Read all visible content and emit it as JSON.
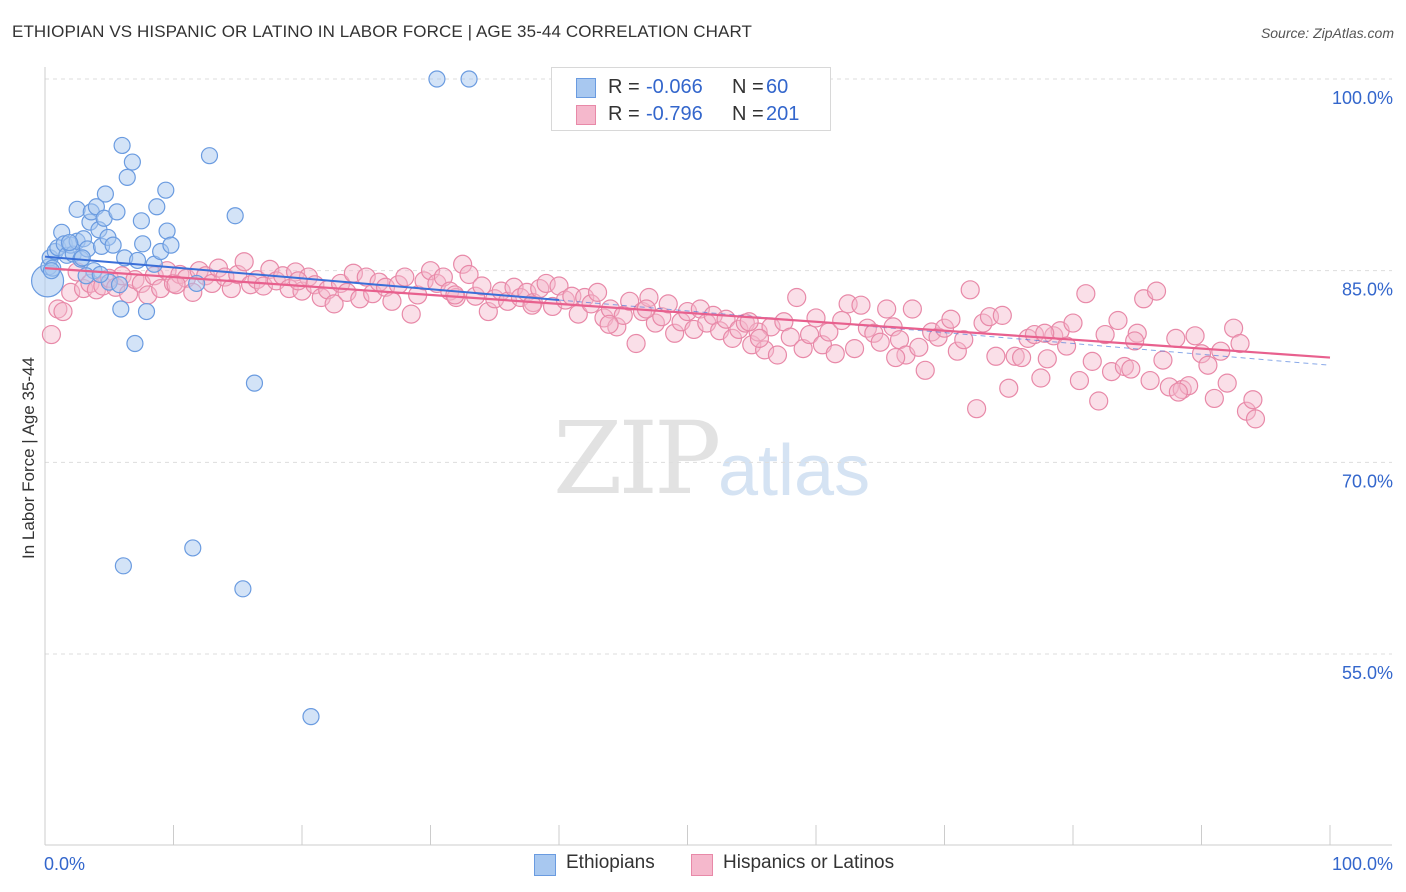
{
  "title": "ETHIOPIAN VS HISPANIC OR LATINO IN LABOR FORCE | AGE 35-44 CORRELATION CHART",
  "source": "Source: ZipAtlas.com",
  "watermark": {
    "zip": "ZIP",
    "atlas": "atlas"
  },
  "legend": {
    "r_label": "R =",
    "n_label": "N =",
    "rows": [
      {
        "r": "-0.066",
        "n": "60"
      },
      {
        "r": "-0.796",
        "n": "201"
      }
    ]
  },
  "colors": {
    "ethiopians_fill": "#a8c8f0",
    "ethiopians_stroke": "#6a9be0",
    "ethiopians_line": "#3a6fd8",
    "hispanics_fill": "#f5b8cc",
    "hispanics_stroke": "#e889a8",
    "hispanics_line": "#e8608e",
    "axis_text": "#3366cc",
    "grid": "#dddddd"
  },
  "chart_data": {
    "type": "scatter",
    "title": "ETHIOPIAN VS HISPANIC OR LATINO IN LABOR FORCE | AGE 35-44 CORRELATION CHART",
    "ylabel": "In Labor Force | Age 35-44",
    "xlabel": "",
    "x_tick_labels": [
      "0.0%",
      "100.0%"
    ],
    "y_tick_labels": [
      "100.0%",
      "85.0%",
      "70.0%",
      "55.0%"
    ],
    "y_ticks": [
      100,
      85,
      70,
      55
    ],
    "xlim": [
      0,
      100
    ],
    "ylim": [
      40,
      101.5
    ],
    "grid": true,
    "legend_position": "top-center",
    "series": [
      {
        "name": "Ethiopians",
        "r": -0.066,
        "n": 60,
        "trend": {
          "x": [
            0,
            40
          ],
          "y": [
            86.1,
            82.7
          ]
        },
        "points": [
          [
            0.2,
            84.2
          ],
          [
            0.3,
            85.3
          ],
          [
            0.4,
            86.0
          ],
          [
            0.6,
            85.2
          ],
          [
            0.8,
            86.5
          ],
          [
            1.0,
            86.8
          ],
          [
            1.3,
            88.0
          ],
          [
            1.5,
            87.1
          ],
          [
            1.7,
            86.2
          ],
          [
            2.0,
            87.0
          ],
          [
            2.2,
            86.3
          ],
          [
            2.5,
            89.8
          ],
          [
            2.5,
            87.3
          ],
          [
            2.8,
            85.9
          ],
          [
            3.0,
            87.5
          ],
          [
            3.3,
            86.7
          ],
          [
            3.5,
            88.8
          ],
          [
            3.6,
            89.6
          ],
          [
            3.8,
            85.0
          ],
          [
            4.0,
            90.0
          ],
          [
            4.2,
            88.2
          ],
          [
            4.4,
            86.9
          ],
          [
            4.6,
            89.1
          ],
          [
            4.7,
            91.0
          ],
          [
            4.9,
            87.6
          ],
          [
            5.0,
            84.1
          ],
          [
            5.3,
            87.0
          ],
          [
            5.6,
            89.6
          ],
          [
            5.8,
            83.9
          ],
          [
            5.9,
            82.0
          ],
          [
            6.0,
            94.8
          ],
          [
            6.2,
            86.0
          ],
          [
            6.4,
            92.3
          ],
          [
            6.8,
            93.5
          ],
          [
            7.0,
            79.3
          ],
          [
            7.2,
            85.8
          ],
          [
            7.5,
            88.9
          ],
          [
            7.6,
            87.1
          ],
          [
            7.9,
            81.8
          ],
          [
            8.5,
            85.5
          ],
          [
            8.7,
            90.0
          ],
          [
            9.0,
            86.5
          ],
          [
            9.4,
            91.3
          ],
          [
            9.5,
            88.1
          ],
          [
            9.8,
            87.0
          ],
          [
            11.8,
            84.0
          ],
          [
            12.8,
            94.0
          ],
          [
            14.8,
            89.3
          ],
          [
            16.3,
            76.2
          ],
          [
            0.5,
            85.0
          ],
          [
            3.2,
            84.6
          ],
          [
            1.9,
            87.2
          ],
          [
            2.9,
            86.0
          ],
          [
            4.3,
            84.7
          ],
          [
            6.1,
            61.9
          ],
          [
            11.5,
            63.3
          ],
          [
            15.4,
            60.1
          ],
          [
            20.7,
            50.1
          ],
          [
            30.5,
            100.0
          ],
          [
            33.0,
            100.0
          ]
        ]
      },
      {
        "name": "Hispanics or Latinos",
        "r": -0.796,
        "n": 201,
        "trend": {
          "x": [
            0,
            100
          ],
          "y": [
            85.2,
            78.2
          ]
        },
        "points": [
          [
            0.5,
            80.0
          ],
          [
            1.0,
            82.0
          ],
          [
            1.4,
            81.8
          ],
          [
            2.0,
            83.3
          ],
          [
            2.5,
            84.9
          ],
          [
            3.0,
            83.6
          ],
          [
            3.5,
            84.0
          ],
          [
            4.0,
            83.5
          ],
          [
            4.5,
            83.8
          ],
          [
            5.0,
            84.4
          ],
          [
            5.5,
            83.7
          ],
          [
            6.0,
            84.6
          ],
          [
            6.5,
            83.2
          ],
          [
            7.0,
            84.3
          ],
          [
            7.5,
            84.0
          ],
          [
            8.0,
            83.1
          ],
          [
            8.5,
            84.6
          ],
          [
            9.0,
            83.6
          ],
          [
            9.5,
            85.0
          ],
          [
            10.0,
            84.0
          ],
          [
            10.5,
            84.7
          ],
          [
            11.0,
            84.4
          ],
          [
            11.5,
            83.3
          ],
          [
            12.0,
            85.0
          ],
          [
            12.5,
            84.6
          ],
          [
            13.0,
            84.0
          ],
          [
            13.5,
            85.2
          ],
          [
            14.0,
            84.5
          ],
          [
            14.5,
            83.6
          ],
          [
            15.0,
            84.7
          ],
          [
            15.5,
            85.7
          ],
          [
            16.0,
            83.9
          ],
          [
            16.5,
            84.3
          ],
          [
            17.0,
            83.8
          ],
          [
            17.5,
            85.1
          ],
          [
            18.0,
            84.2
          ],
          [
            18.5,
            84.6
          ],
          [
            19.0,
            83.6
          ],
          [
            19.5,
            84.9
          ],
          [
            20.0,
            83.4
          ],
          [
            20.5,
            84.5
          ],
          [
            21.0,
            83.9
          ],
          [
            21.5,
            82.9
          ],
          [
            22.0,
            83.5
          ],
          [
            22.5,
            82.4
          ],
          [
            23.0,
            84.0
          ],
          [
            23.5,
            83.3
          ],
          [
            24.0,
            84.8
          ],
          [
            24.5,
            82.8
          ],
          [
            25.0,
            84.5
          ],
          [
            25.5,
            83.2
          ],
          [
            26.0,
            84.1
          ],
          [
            26.5,
            83.7
          ],
          [
            27.0,
            82.6
          ],
          [
            27.5,
            83.9
          ],
          [
            28.0,
            84.5
          ],
          [
            28.5,
            81.6
          ],
          [
            29.0,
            83.1
          ],
          [
            29.5,
            84.2
          ],
          [
            30.0,
            85.0
          ],
          [
            30.5,
            84.0
          ],
          [
            31.0,
            84.5
          ],
          [
            31.5,
            83.4
          ],
          [
            32.0,
            82.9
          ],
          [
            32.5,
            85.5
          ],
          [
            33.0,
            84.7
          ],
          [
            33.5,
            83.0
          ],
          [
            34.0,
            83.8
          ],
          [
            34.5,
            81.8
          ],
          [
            35.0,
            82.8
          ],
          [
            35.5,
            83.4
          ],
          [
            36.0,
            82.6
          ],
          [
            36.5,
            83.7
          ],
          [
            37.0,
            82.9
          ],
          [
            37.5,
            83.3
          ],
          [
            38.0,
            82.5
          ],
          [
            38.5,
            83.6
          ],
          [
            39.0,
            84.0
          ],
          [
            39.5,
            82.2
          ],
          [
            40.0,
            83.8
          ],
          [
            40.5,
            82.7
          ],
          [
            41.0,
            83.0
          ],
          [
            41.5,
            81.6
          ],
          [
            42.0,
            82.9
          ],
          [
            42.5,
            82.4
          ],
          [
            43.0,
            83.3
          ],
          [
            43.5,
            81.3
          ],
          [
            44.0,
            82.0
          ],
          [
            44.5,
            80.6
          ],
          [
            45.0,
            81.5
          ],
          [
            45.5,
            82.6
          ],
          [
            46.0,
            79.3
          ],
          [
            46.5,
            81.8
          ],
          [
            47.0,
            82.9
          ],
          [
            47.5,
            80.9
          ],
          [
            48.0,
            81.4
          ],
          [
            48.5,
            82.4
          ],
          [
            49.0,
            80.1
          ],
          [
            49.5,
            81.0
          ],
          [
            50.0,
            81.8
          ],
          [
            50.5,
            80.4
          ],
          [
            51.0,
            82.0
          ],
          [
            51.5,
            80.9
          ],
          [
            52.0,
            81.5
          ],
          [
            52.5,
            80.3
          ],
          [
            53.0,
            81.2
          ],
          [
            53.5,
            79.7
          ],
          [
            54.0,
            80.4
          ],
          [
            54.5,
            80.9
          ],
          [
            55.0,
            79.2
          ],
          [
            55.5,
            80.2
          ],
          [
            56.0,
            78.8
          ],
          [
            56.5,
            80.6
          ],
          [
            57.0,
            78.4
          ],
          [
            57.5,
            81.0
          ],
          [
            58.0,
            79.8
          ],
          [
            58.5,
            82.9
          ],
          [
            59.0,
            78.9
          ],
          [
            59.5,
            80.0
          ],
          [
            60.0,
            81.3
          ],
          [
            60.5,
            79.2
          ],
          [
            61.0,
            80.2
          ],
          [
            61.5,
            78.5
          ],
          [
            62.0,
            81.1
          ],
          [
            62.5,
            82.4
          ],
          [
            63.0,
            78.9
          ],
          [
            63.5,
            82.3
          ],
          [
            64.0,
            80.5
          ],
          [
            64.5,
            80.1
          ],
          [
            65.0,
            79.4
          ],
          [
            65.5,
            82.0
          ],
          [
            66.0,
            80.6
          ],
          [
            66.5,
            79.6
          ],
          [
            67.0,
            78.4
          ],
          [
            67.5,
            82.0
          ],
          [
            68.0,
            79.0
          ],
          [
            68.5,
            77.2
          ],
          [
            69.0,
            80.2
          ],
          [
            69.5,
            79.8
          ],
          [
            70.0,
            80.5
          ],
          [
            70.5,
            81.2
          ],
          [
            71.0,
            78.7
          ],
          [
            71.5,
            79.6
          ],
          [
            72.0,
            83.5
          ],
          [
            72.5,
            74.2
          ],
          [
            73.0,
            80.9
          ],
          [
            73.5,
            81.4
          ],
          [
            74.0,
            78.3
          ],
          [
            74.5,
            81.5
          ],
          [
            75.0,
            75.8
          ],
          [
            75.5,
            78.3
          ],
          [
            76.0,
            78.2
          ],
          [
            76.5,
            79.7
          ],
          [
            77.0,
            80.0
          ],
          [
            77.5,
            76.6
          ],
          [
            78.0,
            78.1
          ],
          [
            78.5,
            79.9
          ],
          [
            79.0,
            80.3
          ],
          [
            79.5,
            79.1
          ],
          [
            80.0,
            80.9
          ],
          [
            80.5,
            76.4
          ],
          [
            81.0,
            83.2
          ],
          [
            81.5,
            77.9
          ],
          [
            82.0,
            74.8
          ],
          [
            82.5,
            80.0
          ],
          [
            83.0,
            77.1
          ],
          [
            83.5,
            81.1
          ],
          [
            84.0,
            77.5
          ],
          [
            84.5,
            77.3
          ],
          [
            85.0,
            80.1
          ],
          [
            85.5,
            82.8
          ],
          [
            86.0,
            76.4
          ],
          [
            86.5,
            83.4
          ],
          [
            87.0,
            78.0
          ],
          [
            87.5,
            75.9
          ],
          [
            88.0,
            79.7
          ],
          [
            88.5,
            75.7
          ],
          [
            89.0,
            76.0
          ],
          [
            89.5,
            79.9
          ],
          [
            90.0,
            78.5
          ],
          [
            90.5,
            77.6
          ],
          [
            91.0,
            75.0
          ],
          [
            91.5,
            78.7
          ],
          [
            92.0,
            76.2
          ],
          [
            92.5,
            80.5
          ],
          [
            93.0,
            79.3
          ],
          [
            93.5,
            74.0
          ],
          [
            94.0,
            74.9
          ],
          [
            94.2,
            73.4
          ],
          [
            46.8,
            82.0
          ],
          [
            37.9,
            82.3
          ],
          [
            55.6,
            79.7
          ],
          [
            66.2,
            78.2
          ],
          [
            77.8,
            80.1
          ],
          [
            84.8,
            79.5
          ],
          [
            88.2,
            75.5
          ],
          [
            54.8,
            81.0
          ],
          [
            43.9,
            80.8
          ],
          [
            31.9,
            83.1
          ],
          [
            19.7,
            84.2
          ],
          [
            10.2,
            83.9
          ]
        ]
      }
    ]
  }
}
